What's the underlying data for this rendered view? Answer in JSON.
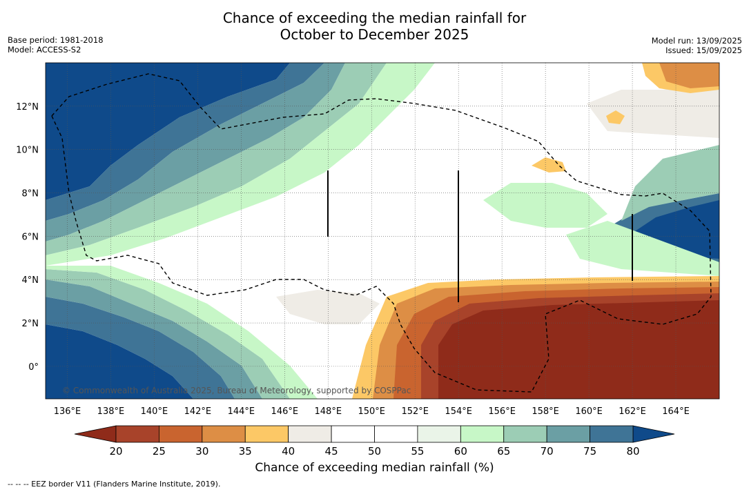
{
  "title_line1": "Chance of exceeding the median rainfall for",
  "title_line2": "October to December 2025",
  "base_period": "Base period: 1981-2018",
  "model": "Model: ACCESS-S2",
  "model_run": "Model run: 13/09/2025",
  "issued": "Issued: 15/09/2025",
  "copyright": "© Commonwealth of Australia 2025, Bureau of Meteorology, supported by COSPPac",
  "footnote": "--  --  -- EEZ border V11 (Flanders Marine Institute, 2019).",
  "colorbar_title": "Chance of exceeding median rainfall (%)",
  "map": {
    "lon_range": [
      135,
      166
    ],
    "lat_range": [
      -1.5,
      14
    ],
    "lon_ticks": [
      "136°E",
      "138°E",
      "140°E",
      "142°E",
      "144°E",
      "146°E",
      "148°E",
      "150°E",
      "152°E",
      "154°E",
      "156°E",
      "158°E",
      "160°E",
      "162°E",
      "164°E"
    ],
    "lon_tick_values": [
      136,
      138,
      140,
      142,
      144,
      146,
      148,
      150,
      152,
      154,
      156,
      158,
      160,
      162,
      164
    ],
    "lat_ticks": [
      "12°N",
      "10°N",
      "8°N",
      "6°N",
      "4°N",
      "2°N",
      "0°"
    ],
    "lat_tick_values": [
      12,
      10,
      8,
      6,
      4,
      2,
      0
    ],
    "grid": true
  },
  "colorbar": {
    "ticks": [
      "20",
      "25",
      "30",
      "35",
      "40",
      "45",
      "50",
      "55",
      "60",
      "65",
      "70",
      "75",
      "80"
    ],
    "under_color": "#8f2b1a",
    "over_color": "#0f4a8a",
    "colors": [
      "#a8432a",
      "#c9642f",
      "#dd8e45",
      "#fcc866",
      "#efece6",
      "#ffffff",
      "#ffffff",
      "#eaf4e8",
      "#c7f7c7",
      "#9ccdb5",
      "#6b9fa4",
      "#3f7496"
    ]
  }
}
